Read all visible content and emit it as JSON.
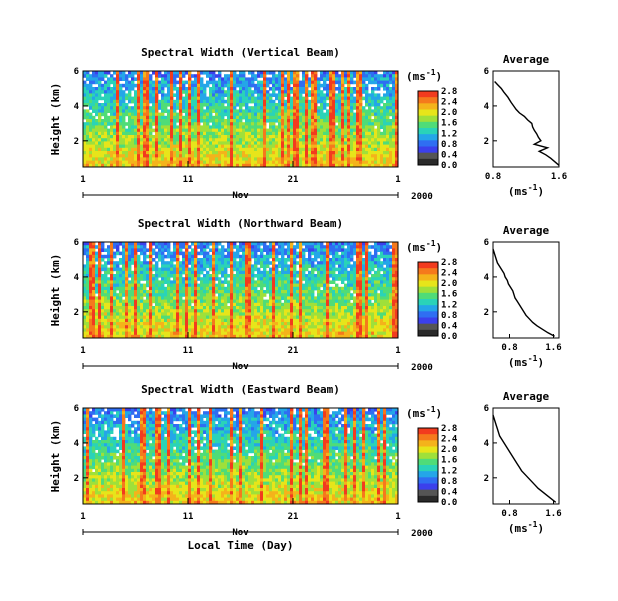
{
  "figure": {
    "xlabel": "Local Time (Day)",
    "month": "Nov",
    "year": "2000",
    "ylabel": "Height (km)"
  },
  "colorbar": {
    "unit": "(ms",
    "unit_exp": "-1",
    "unit_close": ")",
    "ticks": [
      "2.8",
      "2.4",
      "2.0",
      "1.6",
      "1.2",
      "0.8",
      "0.4",
      "0.0"
    ],
    "colors": [
      "#f23b1e",
      "#f5791c",
      "#f4b31b",
      "#e7e51a",
      "#9fe03a",
      "#4fdc78",
      "#2ad3b8",
      "#24a6e8",
      "#2f6ef2",
      "#3b40ec",
      "#555555",
      "#2a2a2a"
    ]
  },
  "chart_data": [
    {
      "type": "heatmap",
      "title": "Spectral Width (Vertical Beam)",
      "x_ticks": [
        "1",
        "11",
        "21",
        "1"
      ],
      "y_ticks": [
        "6",
        "4",
        "2"
      ],
      "xlim": [
        1,
        31
      ],
      "ylim": [
        0.5,
        6
      ],
      "zlim": [
        0.0,
        2.8
      ],
      "xlabel": "",
      "ylabel": "Height (km)",
      "profile": {
        "title": "Average",
        "x_ticks": [
          "0.8",
          "1.6"
        ],
        "y_ticks": [
          "6",
          "4",
          "2"
        ],
        "xlim": [
          0.8,
          1.6
        ],
        "ylim": [
          0.5,
          6
        ],
        "xlabel": "(ms",
        "height": [
          5.4,
          5.2,
          5.0,
          4.8,
          4.5,
          4.2,
          4.0,
          3.8,
          3.6,
          3.4,
          3.2,
          3.0,
          2.8,
          2.6,
          2.4,
          2.2,
          2.0,
          1.8,
          1.6,
          1.4,
          1.2,
          1.0,
          0.8,
          0.6
        ],
        "width": [
          0.82,
          0.86,
          0.9,
          0.93,
          0.98,
          1.02,
          1.05,
          1.08,
          1.12,
          1.18,
          1.22,
          1.27,
          1.28,
          1.3,
          1.33,
          1.35,
          1.38,
          1.3,
          1.46,
          1.36,
          1.44,
          1.5,
          1.55,
          1.6
        ]
      }
    },
    {
      "type": "heatmap",
      "title": "Spectral Width (Northward Beam)",
      "x_ticks": [
        "1",
        "11",
        "21",
        "1"
      ],
      "y_ticks": [
        "6",
        "4",
        "2"
      ],
      "xlim": [
        1,
        31
      ],
      "ylim": [
        0.5,
        6
      ],
      "zlim": [
        0.0,
        2.8
      ],
      "xlabel": "",
      "ylabel": "Height (km)",
      "profile": {
        "title": "Average",
        "x_ticks": [
          "0.8",
          "1.6"
        ],
        "y_ticks": [
          "6",
          "4",
          "2"
        ],
        "xlim": [
          0.5,
          1.7
        ],
        "ylim": [
          0.5,
          6
        ],
        "xlabel": "(ms",
        "height": [
          5.6,
          5.4,
          5.2,
          5.0,
          4.8,
          4.6,
          4.4,
          4.2,
          4.0,
          3.8,
          3.6,
          3.4,
          3.2,
          3.0,
          2.8,
          2.6,
          2.4,
          2.2,
          2.0,
          1.8,
          1.6,
          1.4,
          1.2,
          1.0,
          0.8,
          0.6
        ],
        "width": [
          0.5,
          0.52,
          0.54,
          0.56,
          0.58,
          0.62,
          0.66,
          0.7,
          0.72,
          0.76,
          0.78,
          0.82,
          0.86,
          0.88,
          0.9,
          0.94,
          0.98,
          1.02,
          1.06,
          1.1,
          1.16,
          1.22,
          1.3,
          1.4,
          1.5,
          1.62
        ]
      }
    },
    {
      "type": "heatmap",
      "title": "Spectral Width (Eastward Beam)",
      "x_ticks": [
        "1",
        "11",
        "21",
        "1"
      ],
      "y_ticks": [
        "6",
        "4",
        "2"
      ],
      "xlim": [
        1,
        31
      ],
      "ylim": [
        0.5,
        6
      ],
      "zlim": [
        0.0,
        2.8
      ],
      "xlabel": "Local Time (Day)",
      "ylabel": "Height (km)",
      "profile": {
        "title": "Average",
        "x_ticks": [
          "0.8",
          "1.6"
        ],
        "y_ticks": [
          "6",
          "4",
          "2"
        ],
        "xlim": [
          0.5,
          1.7
        ],
        "ylim": [
          0.5,
          6
        ],
        "xlabel": "(ms",
        "height": [
          5.6,
          5.4,
          5.2,
          5.0,
          4.8,
          4.6,
          4.4,
          4.2,
          4.0,
          3.8,
          3.6,
          3.4,
          3.2,
          3.0,
          2.8,
          2.6,
          2.4,
          2.2,
          2.0,
          1.8,
          1.6,
          1.4,
          1.2,
          1.0,
          0.8,
          0.6
        ],
        "width": [
          0.5,
          0.52,
          0.54,
          0.56,
          0.58,
          0.6,
          0.62,
          0.66,
          0.7,
          0.74,
          0.78,
          0.82,
          0.86,
          0.9,
          0.94,
          0.98,
          1.02,
          1.08,
          1.14,
          1.2,
          1.26,
          1.32,
          1.4,
          1.48,
          1.56,
          1.64
        ]
      }
    }
  ]
}
